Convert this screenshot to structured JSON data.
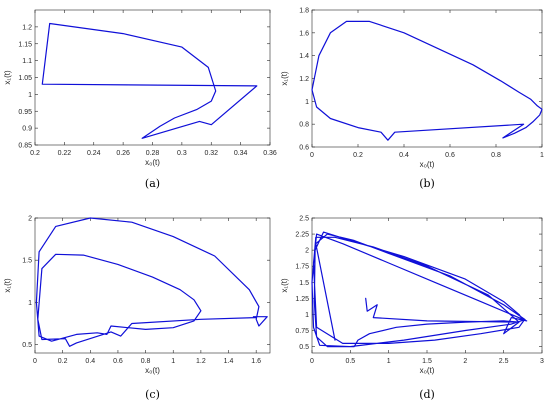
{
  "colors": {
    "series": "#1010d8",
    "axis": "#262626",
    "background": "#ffffff"
  },
  "chart_data": [
    {
      "type": "line",
      "panel_label": "(a)",
      "xlabel": "x₀(t)",
      "ylabel": "x₁(t)",
      "xlim": [
        0.2,
        0.36
      ],
      "ylim": [
        0.85,
        1.25
      ],
      "xticks": [
        0.2,
        0.22,
        0.24,
        0.26,
        0.28,
        0.3,
        0.32,
        0.34,
        0.36
      ],
      "yticks": [
        0.85,
        0.9,
        0.95,
        1,
        1.05,
        1.1,
        1.15,
        1.2
      ],
      "grid": false,
      "series": [
        {
          "x": [
            0.273,
            0.312,
            0.32,
            0.351,
            0.205,
            0.21,
            0.26,
            0.3,
            0.318,
            0.323,
            0.32,
            0.31,
            0.295,
            0.285,
            0.273
          ],
          "y": [
            0.87,
            0.92,
            0.91,
            1.025,
            1.03,
            1.21,
            1.18,
            1.14,
            1.08,
            1.01,
            0.98,
            0.955,
            0.93,
            0.905,
            0.87
          ]
        }
      ]
    },
    {
      "type": "line",
      "panel_label": "(b)",
      "xlabel": "x₀(t)",
      "ylabel": "x₁(t)",
      "xlim": [
        0,
        1
      ],
      "ylim": [
        0.6,
        1.8
      ],
      "xticks": [
        0,
        0.2,
        0.4,
        0.6,
        0.8,
        1
      ],
      "yticks": [
        0.6,
        0.8,
        1,
        1.2,
        1.4,
        1.6,
        1.8
      ],
      "grid": false,
      "series": [
        {
          "x": [
            0.83,
            0.92,
            0.36,
            0.33,
            0.3,
            0.2,
            0.08,
            0.02,
            0.0,
            0.01,
            0.03,
            0.08,
            0.15,
            0.25,
            0.4,
            0.55,
            0.7,
            0.82,
            0.9,
            0.95,
            0.98,
            1.0,
            0.99,
            0.96,
            0.93,
            0.88,
            0.83
          ],
          "y": [
            0.68,
            0.8,
            0.73,
            0.66,
            0.73,
            0.77,
            0.85,
            0.95,
            1.1,
            1.2,
            1.4,
            1.6,
            1.7,
            1.7,
            1.6,
            1.46,
            1.32,
            1.18,
            1.08,
            1.02,
            0.96,
            0.93,
            0.88,
            0.82,
            0.77,
            0.72,
            0.68
          ]
        }
      ]
    },
    {
      "type": "line",
      "panel_label": "(c)",
      "xlabel": "x₀(t)",
      "ylabel": "x₁(t)",
      "xlim": [
        0,
        1.7
      ],
      "ylim": [
        0.4,
        2.0
      ],
      "xticks": [
        0,
        0.2,
        0.4,
        0.6,
        0.8,
        1,
        1.2,
        1.4,
        1.6
      ],
      "yticks": [
        0.5,
        1,
        1.5,
        2
      ],
      "grid": false,
      "series": [
        {
          "x": [
            0.25,
            0.22,
            0.05,
            0.02,
            0.05,
            0.15,
            0.35,
            0.6,
            0.85,
            1.05,
            1.15,
            1.2,
            1.15,
            1.0,
            0.8,
            0.55,
            0.52,
            0.45,
            0.3,
            0.12,
            0.03,
            0.01,
            0.03,
            0.15,
            0.4,
            0.7,
            1.0,
            1.3,
            1.55,
            1.62,
            1.6,
            1.62,
            1.68,
            1.58,
            1.6,
            1.2,
            0.7,
            0.62,
            0.55,
            0.3,
            0.25
          ],
          "y": [
            0.48,
            0.57,
            0.56,
            0.8,
            1.4,
            1.57,
            1.56,
            1.45,
            1.3,
            1.15,
            1.03,
            0.9,
            0.78,
            0.7,
            0.68,
            0.72,
            0.62,
            0.64,
            0.62,
            0.54,
            0.6,
            1.0,
            1.6,
            1.9,
            2.0,
            1.95,
            1.78,
            1.55,
            1.15,
            0.95,
            0.8,
            0.72,
            0.83,
            0.83,
            0.82,
            0.8,
            0.75,
            0.6,
            0.65,
            0.52,
            0.48
          ]
        }
      ]
    },
    {
      "type": "line",
      "panel_label": "(d)",
      "xlabel": "x₀(t)",
      "ylabel": "x₁(t)",
      "xlim": [
        0,
        3
      ],
      "ylim": [
        0.4,
        2.5
      ],
      "xticks": [
        0,
        0.5,
        1,
        1.5,
        2,
        2.5,
        3
      ],
      "yticks": [
        0.5,
        0.75,
        1,
        1.25,
        1.5,
        1.75,
        2,
        2.25,
        2.5
      ],
      "grid": false,
      "series": [
        {
          "x": [
            0.7,
            0.72,
            0.85,
            0.8,
            1.5,
            2.7,
            2.5,
            2.6,
            2.8,
            2.2,
            1.6,
            1.0,
            0.4,
            0.06,
            0.02,
            0.06,
            0.4,
            1.0,
            1.6,
            2.2,
            2.7,
            2.76,
            2.7,
            2.5,
            2.0,
            1.2,
            0.5,
            0.15,
            0.04,
            0.03,
            0.06,
            0.2,
            0.55,
            0.6,
            0.75,
            1.1,
            1.5,
            2.0,
            2.5,
            2.7,
            2.3,
            1.5,
            0.8,
            0.3,
            0.05,
            0.0,
            0.02,
            0.1,
            0.5,
            1.2,
            2.0,
            2.6,
            2.78,
            2.5,
            1.8,
            1.0,
            0.55,
            0.2,
            0.05,
            0.3
          ],
          "y": [
            1.25,
            1.05,
            1.15,
            0.95,
            0.9,
            0.88,
            0.7,
            0.95,
            0.9,
            1.2,
            1.5,
            1.8,
            2.1,
            2.25,
            1.8,
            0.8,
            0.55,
            0.55,
            0.6,
            0.7,
            0.8,
            0.9,
            1.0,
            1.2,
            1.55,
            1.9,
            2.15,
            2.28,
            2.0,
            1.2,
            0.65,
            0.5,
            0.5,
            0.6,
            0.7,
            0.8,
            0.85,
            0.88,
            0.9,
            0.88,
            1.3,
            1.75,
            2.05,
            2.2,
            2.2,
            1.5,
            0.8,
            0.52,
            0.5,
            0.6,
            0.75,
            0.85,
            0.92,
            1.15,
            1.6,
            1.95,
            2.15,
            2.25,
            2.1,
            0.6
          ]
        }
      ]
    }
  ]
}
